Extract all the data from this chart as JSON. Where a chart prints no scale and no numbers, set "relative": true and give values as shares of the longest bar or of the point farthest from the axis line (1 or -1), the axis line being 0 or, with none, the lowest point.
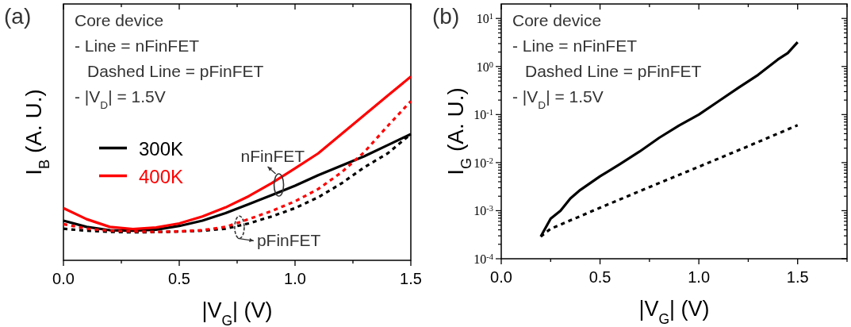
{
  "chart_data": [
    {
      "type": "line",
      "title": "(a)",
      "xlabel": "|V$_{G}$| (V)",
      "ylabel": "I$_{B}$ (A. U.)",
      "relative": true,
      "legend": "left",
      "xlim": [
        0,
        1.5
      ],
      "xticks": [
        {
          "value": 0,
          "label": "0.0"
        },
        {
          "value": 0.25,
          "label": null
        },
        {
          "value": 0.5,
          "label": "0.5"
        },
        {
          "value": 0.75,
          "label": null
        },
        {
          "value": 1,
          "label": "1.0"
        },
        {
          "value": 1.25,
          "label": null
        },
        {
          "value": 1.5,
          "label": "1.5"
        }
      ],
      "x": [
        0,
        0.1,
        0.2,
        0.3,
        0.4,
        0.5,
        0.6,
        0.7,
        0.8,
        0.9,
        1,
        1.1,
        1.2,
        1.3,
        1.4,
        1.5
      ],
      "series": [
        {
          "name": "300K",
          "color": "#000000",
          "line_style": "solid",
          "values": [
            0.216,
            0.182,
            0.164,
            0.161,
            0.167,
            0.187,
            0.216,
            0.257,
            0.306,
            0.355,
            0.406,
            0.463,
            0.515,
            0.567,
            0.627,
            0.687
          ]
        },
        {
          "name": "400K",
          "color": "#ff0000",
          "line_style": "solid",
          "values": [
            0.284,
            0.224,
            0.182,
            0.17,
            0.179,
            0.201,
            0.239,
            0.288,
            0.349,
            0.421,
            0.5,
            0.582,
            0.687,
            0.791,
            0.896,
            1
          ]
        },
        {
          "color": "#000000",
          "line_style": "dashed",
          "values": [
            0.172,
            0.161,
            0.155,
            0.152,
            0.154,
            0.157,
            0.161,
            0.172,
            0.201,
            0.239,
            0.284,
            0.343,
            0.418,
            0.507,
            0.582,
            0.687
          ]
        },
        {
          "color": "#ff0000",
          "line_style": "dashed",
          "values": [
            0.197,
            0.172,
            0.161,
            0.157,
            0.155,
            0.157,
            0.164,
            0.182,
            0.224,
            0.269,
            0.321,
            0.388,
            0.478,
            0.59,
            0.731,
            0.866
          ]
        }
      ],
      "annotations": [
        "Core device",
        "- Line = nFinFET",
        "Dashed Line = pFinFET",
        "- |V$_{D}$| = 1.5V",
        {
          "text": "nFinFET",
          "x": 0.93,
          "y": 0.41
        },
        {
          "text": "pFinFET",
          "x": 0.76,
          "y": 0.18
        }
      ]
    },
    {
      "type": "line",
      "title": "(b)",
      "xlabel": "|V$_{G}$| (V)",
      "ylabel": "I$_{G}$ (A. U.)",
      "log": "y",
      "xlim": [
        0,
        1.75
      ],
      "xticks": [
        {
          "value": 0,
          "label": "0.0"
        },
        {
          "value": 0.25,
          "label": null
        },
        {
          "value": 0.5,
          "label": "0.5"
        },
        {
          "value": 0.75,
          "label": null
        },
        {
          "value": 1,
          "label": "1.0"
        },
        {
          "value": 1.25,
          "label": null
        },
        {
          "value": 1.5,
          "label": "1.5"
        },
        {
          "value": 1.75,
          "label": null
        }
      ],
      "ylim": [
        0.0001,
        20
      ],
      "yticks": [
        {
          "value": 0.0001,
          "label": "10$^{-4}$"
        },
        {
          "value": 0.0002,
          "label": null
        },
        {
          "value": 0.0003,
          "label": null
        },
        {
          "value": 0.0004,
          "label": null
        },
        {
          "value": 0.0005,
          "label": null
        },
        {
          "value": 0.0006,
          "label": null
        },
        {
          "value": 0.0007,
          "label": null
        },
        {
          "value": 0.0008,
          "label": null
        },
        {
          "value": 0.0009,
          "label": null
        },
        {
          "value": 0.001,
          "label": "10$^{-3}$"
        },
        {
          "value": 0.002,
          "label": null
        },
        {
          "value": 0.003,
          "label": null
        },
        {
          "value": 0.004,
          "label": null
        },
        {
          "value": 0.005,
          "label": null
        },
        {
          "value": 0.006,
          "label": null
        },
        {
          "value": 0.007,
          "label": null
        },
        {
          "value": 0.008,
          "label": null
        },
        {
          "value": 0.009,
          "label": null
        },
        {
          "value": 0.01,
          "label": "10$^{-2}$"
        },
        {
          "value": 0.02,
          "label": null
        },
        {
          "value": 0.03,
          "label": null
        },
        {
          "value": 0.04,
          "label": null
        },
        {
          "value": 0.05,
          "label": null
        },
        {
          "value": 0.06,
          "label": null
        },
        {
          "value": 0.07,
          "label": null
        },
        {
          "value": 0.08,
          "label": null
        },
        {
          "value": 0.09,
          "label": null
        },
        {
          "value": 0.1,
          "label": "10$^{-1}$"
        },
        {
          "value": 0.2,
          "label": null
        },
        {
          "value": 0.3,
          "label": null
        },
        {
          "value": 0.4,
          "label": null
        },
        {
          "value": 0.5,
          "label": null
        },
        {
          "value": 0.6,
          "label": null
        },
        {
          "value": 0.7,
          "label": null
        },
        {
          "value": 0.8,
          "label": null
        },
        {
          "value": 0.9,
          "label": null
        },
        {
          "value": 1,
          "label": "10$^{0}$"
        },
        {
          "value": 2,
          "label": null
        },
        {
          "value": 3,
          "label": null
        },
        {
          "value": 4,
          "label": null
        },
        {
          "value": 5,
          "label": null
        },
        {
          "value": 6,
          "label": null
        },
        {
          "value": 7,
          "label": null
        },
        {
          "value": 8,
          "label": null
        },
        {
          "value": 9,
          "label": null
        },
        {
          "value": 10,
          "label": "10$^{1}$"
        }
      ],
      "series": [
        {
          "color": "#000000",
          "line_style": "solid",
          "x": [
            0.2,
            0.25,
            0.3,
            0.35,
            0.4,
            0.5,
            0.6,
            0.7,
            0.8,
            0.9,
            1,
            1.1,
            1.2,
            1.3,
            1.4,
            1.45,
            1.5
          ],
          "values": [
            0.00029,
            0.00068,
            0.001,
            0.0018,
            0.0027,
            0.0052,
            0.0093,
            0.017,
            0.033,
            0.059,
            0.1,
            0.19,
            0.36,
            0.67,
            1.4,
            1.9,
            3.2
          ]
        },
        {
          "color": "#000000",
          "line_style": "dashed",
          "x": [
            0.2,
            0.25,
            0.5,
            0.75,
            1,
            1.25,
            1.5
          ],
          "values": [
            0.00029,
            0.00042,
            0.00115,
            0.0031,
            0.0082,
            0.022,
            0.06
          ]
        }
      ],
      "annotations": [
        "Core device",
        "- Line = nFinFET",
        "Dashed Line = pFinFET",
        "- |V$_{D}$| = 1.5V"
      ]
    }
  ]
}
